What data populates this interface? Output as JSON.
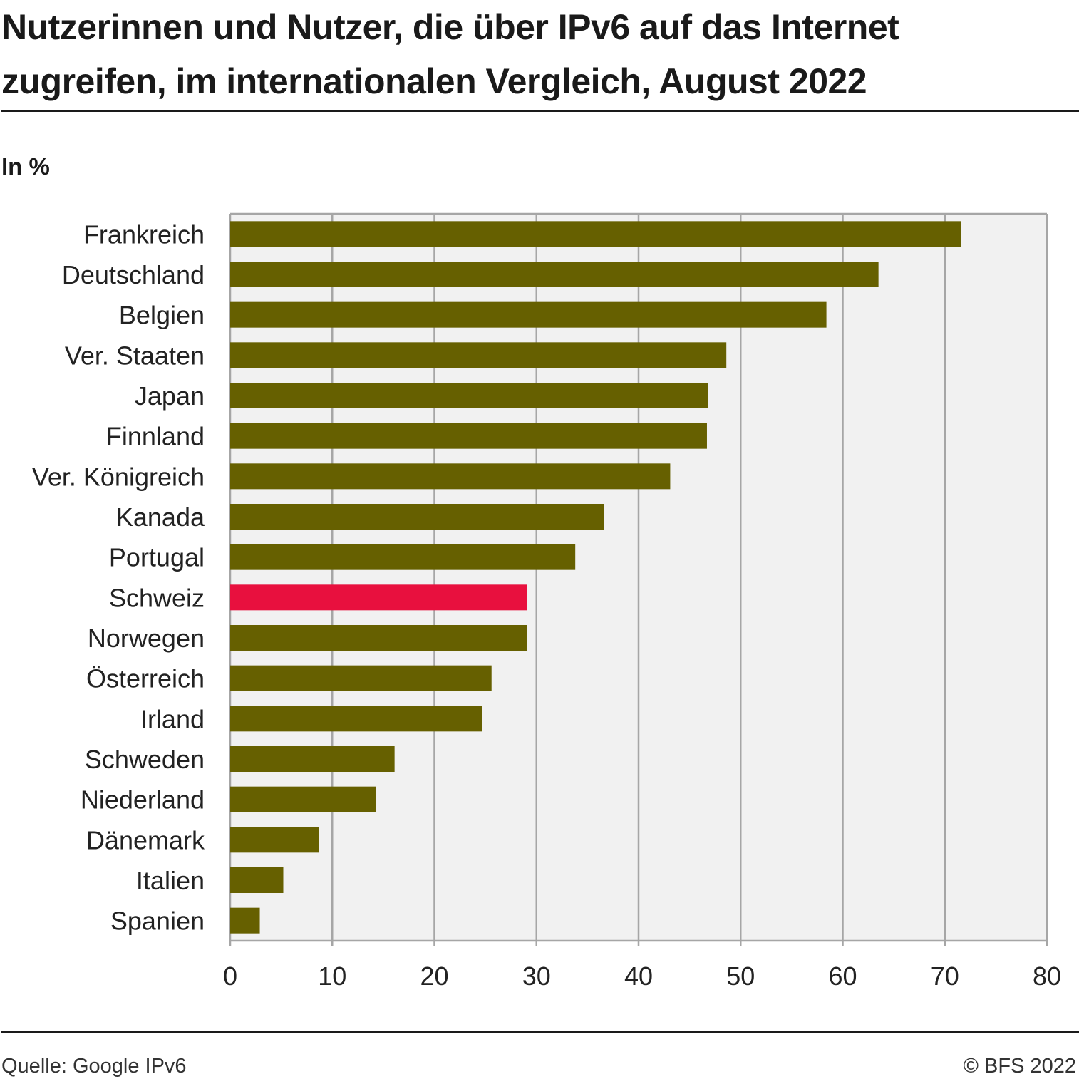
{
  "header": {
    "title": "Nutzerinnen und Nutzer, die über IPv6 auf das Internet zugreifen, im internationalen Vergleich, August 2022",
    "unit": "In %"
  },
  "footer": {
    "source": "Quelle: Google IPv6",
    "copyright": "© BFS 2022"
  },
  "colors": {
    "bar": "#666000",
    "highlight": "#e8103e",
    "plot_bg": "#f1f1f1",
    "grid": "#a6a6a6"
  },
  "chart_data": {
    "type": "bar",
    "orientation": "horizontal",
    "categories": [
      "Frankreich",
      "Deutschland",
      "Belgien",
      "Ver. Staaten",
      "Japan",
      "Finnland",
      "Ver. Königreich",
      "Kanada",
      "Portugal",
      "Schweiz",
      "Norwegen",
      "Österreich",
      "Irland",
      "Schweden",
      "Niederland",
      "Dänemark",
      "Italien",
      "Spanien"
    ],
    "values": [
      71.6,
      63.5,
      58.4,
      48.6,
      46.8,
      46.7,
      43.1,
      36.6,
      33.8,
      29.1,
      29.1,
      25.6,
      24.7,
      16.1,
      14.3,
      8.7,
      5.2,
      2.9
    ],
    "highlight": "Schweiz",
    "xlabel": "",
    "ylabel": "In %",
    "xlim": [
      0,
      80
    ],
    "xticks": [
      0,
      10,
      20,
      30,
      40,
      50,
      60,
      70,
      80
    ],
    "grid": true
  }
}
